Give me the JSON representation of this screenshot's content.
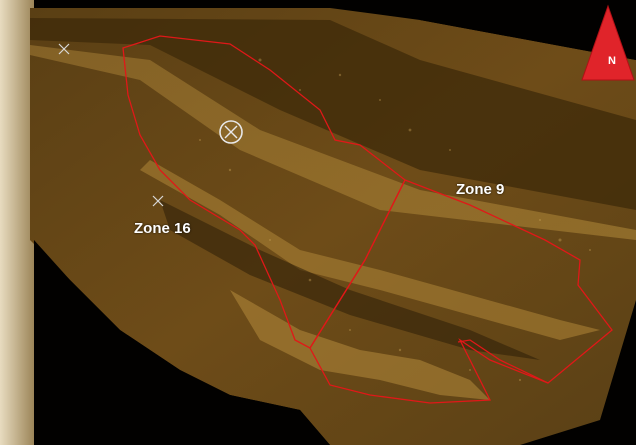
{
  "map": {
    "zones": [
      {
        "id": "zone-9",
        "label": "Zone 9"
      },
      {
        "id": "zone-16",
        "label": "Zone 16"
      }
    ],
    "north_arrow": {
      "letter": "N",
      "color": "#e0242a"
    },
    "markers": [
      {
        "type": "x-mark"
      },
      {
        "type": "x-mark"
      },
      {
        "type": "circled-x-mark"
      }
    ],
    "colors": {
      "zone_boundary": "#e01818",
      "seabed": "#4a3410",
      "background_left": "#c8b690"
    }
  }
}
